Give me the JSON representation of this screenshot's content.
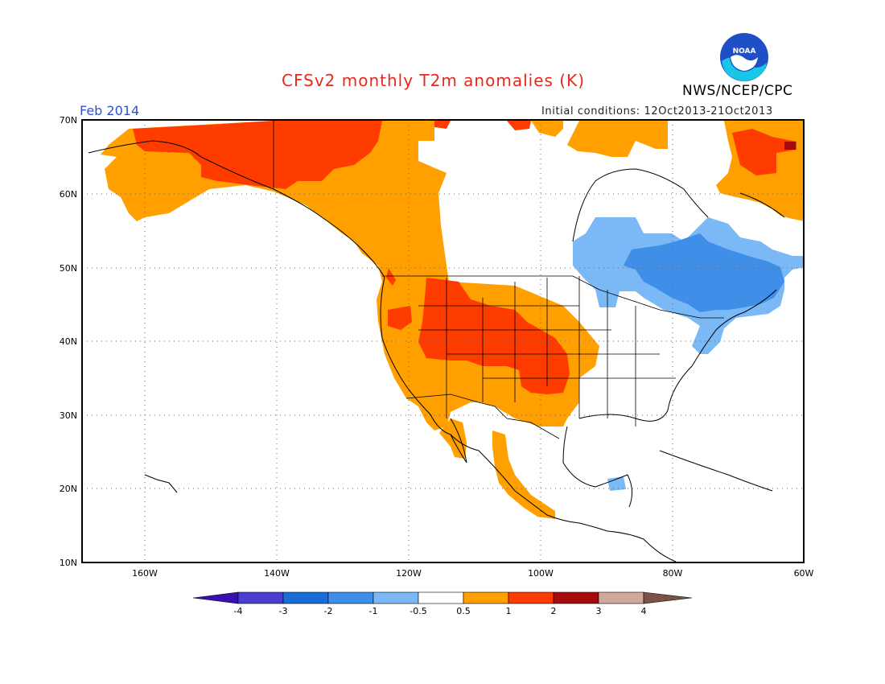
{
  "title": "CFSv2 monthly T2m anomalies (K)",
  "agency": "NWS/NCEP/CPC",
  "logo_text": "NOAA",
  "period": "Feb 2014",
  "initial_conditions": "Initial conditions: 12Oct2013-21Oct2013",
  "axes": {
    "lat_labels": [
      "70N",
      "60N",
      "50N",
      "40N",
      "30N",
      "20N",
      "10N"
    ],
    "lon_labels": [
      "160W",
      "140W",
      "120W",
      "100W",
      "80W",
      "60W"
    ],
    "extent": {
      "lon_min": -172,
      "lon_max": -60,
      "lat_min": 10,
      "lat_max": 70
    },
    "grid": "dotted"
  },
  "colorbar": {
    "labels": [
      "-4",
      "-3",
      "-2",
      "-1",
      "-0.5",
      "0.5",
      "1",
      "2",
      "3",
      "4"
    ],
    "colors": [
      "#3a10b0",
      "#4a3ed0",
      "#1a6cd8",
      "#3f8ee8",
      "#7ab8f6",
      "#ffffff",
      "#ff9f00",
      "#ff3c00",
      "#a70a0a",
      "#d3a89c",
      "#7a5246"
    ]
  },
  "colors": {
    "warm1": "#ff9f00",
    "warm2": "#ff3c00",
    "warm3": "#a70a0a",
    "cool1": "#7ab8f6",
    "cool2": "#3f8ee8"
  }
}
